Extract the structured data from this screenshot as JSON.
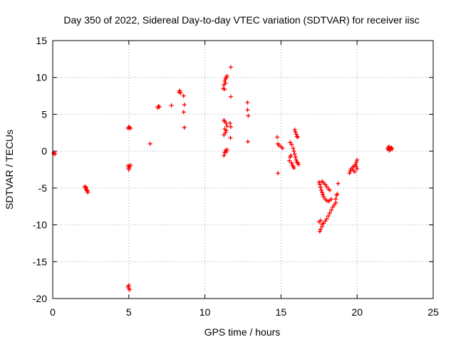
{
  "chart_data": {
    "type": "scatter",
    "title": "Day 350 of 2022, Sidereal Day-to-day VTEC variation (SDTVAR) for receiver iisc",
    "xlabel": "GPS time / hours",
    "ylabel": "SDTVAR / TECUs",
    "xlim": [
      0,
      25
    ],
    "ylim": [
      -20,
      15
    ],
    "x_ticks": [
      0,
      5,
      10,
      15,
      20,
      25
    ],
    "x_tick_labels": [
      "0",
      "5",
      "10",
      "15",
      "20",
      "25"
    ],
    "y_ticks": [
      -20,
      -15,
      -10,
      -5,
      0,
      5,
      10,
      15
    ],
    "y_tick_labels": [
      "-20",
      "-15",
      "-10",
      "-5",
      "0",
      "5",
      "10",
      "15"
    ],
    "grid": true,
    "marker": "plus",
    "marker_color": "#ff0000",
    "series": [
      {
        "points": [
          [
            0.05,
            -0.3
          ],
          [
            0.1,
            -0.2
          ],
          [
            0.15,
            -0.4
          ],
          [
            2.1,
            -4.8
          ],
          [
            2.15,
            -5.0
          ],
          [
            2.2,
            -5.2
          ],
          [
            2.25,
            -5.3
          ],
          [
            2.3,
            -5.6
          ],
          [
            2.2,
            -4.9
          ],
          [
            2.28,
            -5.4
          ],
          [
            4.95,
            3.1
          ],
          [
            5.0,
            3.3
          ],
          [
            5.05,
            3.2
          ],
          [
            5.1,
            3.1
          ],
          [
            4.95,
            -2.0
          ],
          [
            5.0,
            -2.3
          ],
          [
            5.05,
            -2.1
          ],
          [
            5.1,
            -1.9
          ],
          [
            5.0,
            -2.5
          ],
          [
            4.95,
            -18.4
          ],
          [
            5.0,
            -18.6
          ],
          [
            5.05,
            -18.8
          ],
          [
            5.0,
            -18.2
          ],
          [
            6.4,
            1.0
          ],
          [
            6.9,
            5.9
          ],
          [
            6.95,
            6.1
          ],
          [
            7.0,
            6.0
          ],
          [
            7.8,
            6.2
          ],
          [
            8.3,
            8.0
          ],
          [
            8.35,
            8.2
          ],
          [
            8.4,
            7.9
          ],
          [
            8.6,
            7.5
          ],
          [
            8.65,
            6.3
          ],
          [
            8.6,
            5.3
          ],
          [
            8.65,
            3.2
          ],
          [
            11.2,
            8.5
          ],
          [
            11.25,
            9.0
          ],
          [
            11.3,
            9.5
          ],
          [
            11.35,
            9.8
          ],
          [
            11.4,
            10.0
          ],
          [
            11.45,
            10.2
          ],
          [
            11.3,
            8.4
          ],
          [
            11.35,
            9.2
          ],
          [
            11.7,
            11.4
          ],
          [
            11.7,
            7.4
          ],
          [
            11.25,
            4.2
          ],
          [
            11.3,
            3.0
          ],
          [
            11.35,
            2.5
          ],
          [
            11.4,
            2.8
          ],
          [
            11.45,
            3.4
          ],
          [
            11.3,
            4.0
          ],
          [
            11.25,
            2.2
          ],
          [
            11.4,
            3.8
          ],
          [
            11.65,
            3.8
          ],
          [
            11.7,
            3.3
          ],
          [
            11.68,
            1.8
          ],
          [
            11.25,
            -0.6
          ],
          [
            11.3,
            -0.2
          ],
          [
            11.35,
            0.1
          ],
          [
            11.4,
            -0.1
          ],
          [
            11.45,
            0.2
          ],
          [
            12.8,
            6.6
          ],
          [
            12.8,
            5.6
          ],
          [
            12.85,
            4.8
          ],
          [
            12.82,
            1.3
          ],
          [
            14.75,
            1.9
          ],
          [
            14.8,
            1.0
          ],
          [
            14.85,
            0.8
          ],
          [
            15.0,
            0.6
          ],
          [
            15.1,
            0.4
          ],
          [
            14.8,
            -3.0
          ],
          [
            15.55,
            -1.3
          ],
          [
            15.6,
            -0.8
          ],
          [
            15.65,
            -0.6
          ],
          [
            15.6,
            1.2
          ],
          [
            15.7,
            0.9
          ],
          [
            15.8,
            0.4
          ],
          [
            15.85,
            0.0
          ],
          [
            15.9,
            -0.4
          ],
          [
            15.95,
            -0.8
          ],
          [
            16.0,
            -1.2
          ],
          [
            16.05,
            -1.5
          ],
          [
            16.1,
            -1.6
          ],
          [
            16.15,
            -1.8
          ],
          [
            15.9,
            2.9
          ],
          [
            15.95,
            2.6
          ],
          [
            16.0,
            2.3
          ],
          [
            16.05,
            2.0
          ],
          [
            16.1,
            1.9
          ],
          [
            15.7,
            -1.6
          ],
          [
            15.75,
            -1.9
          ],
          [
            15.8,
            -2.1
          ],
          [
            15.85,
            -2.3
          ],
          [
            17.5,
            -4.2
          ],
          [
            17.55,
            -4.5
          ],
          [
            17.6,
            -4.9
          ],
          [
            17.65,
            -5.3
          ],
          [
            17.7,
            -5.6
          ],
          [
            17.75,
            -5.9
          ],
          [
            17.8,
            -6.2
          ],
          [
            17.9,
            -6.5
          ],
          [
            18.0,
            -6.7
          ],
          [
            18.1,
            -6.8
          ],
          [
            18.2,
            -6.7
          ],
          [
            18.3,
            -6.5
          ],
          [
            17.7,
            -4.1
          ],
          [
            17.8,
            -4.3
          ],
          [
            17.9,
            -4.5
          ],
          [
            18.0,
            -4.8
          ],
          [
            18.1,
            -5.1
          ],
          [
            18.2,
            -5.3
          ],
          [
            17.55,
            -10.9
          ],
          [
            17.6,
            -10.6
          ],
          [
            17.7,
            -10.2
          ],
          [
            17.8,
            -9.8
          ],
          [
            17.9,
            -9.5
          ],
          [
            18.0,
            -9.2
          ],
          [
            18.1,
            -8.8
          ],
          [
            18.2,
            -8.4
          ],
          [
            18.3,
            -8.0
          ],
          [
            18.4,
            -7.6
          ],
          [
            18.5,
            -7.3
          ],
          [
            18.6,
            -7.0
          ],
          [
            17.5,
            -9.6
          ],
          [
            17.6,
            -9.4
          ],
          [
            17.7,
            -9.9
          ],
          [
            18.6,
            -6.5
          ],
          [
            18.65,
            -6.0
          ],
          [
            18.7,
            -5.8
          ],
          [
            18.75,
            -4.4
          ],
          [
            19.5,
            -3.0
          ],
          [
            19.55,
            -2.7
          ],
          [
            19.6,
            -2.4
          ],
          [
            19.7,
            -2.2
          ],
          [
            19.8,
            -2.0
          ],
          [
            19.9,
            -1.8
          ],
          [
            19.95,
            -1.5
          ],
          [
            20.0,
            -1.2
          ],
          [
            19.75,
            -2.6
          ],
          [
            19.85,
            -2.8
          ],
          [
            20.0,
            -2.4
          ],
          [
            19.95,
            -2.1
          ],
          [
            22.0,
            0.3
          ],
          [
            22.05,
            0.5
          ],
          [
            22.1,
            0.6
          ],
          [
            22.15,
            0.4
          ],
          [
            22.2,
            0.2
          ],
          [
            22.25,
            0.5
          ],
          [
            22.3,
            0.3
          ],
          [
            22.1,
            0.1
          ]
        ]
      }
    ]
  }
}
